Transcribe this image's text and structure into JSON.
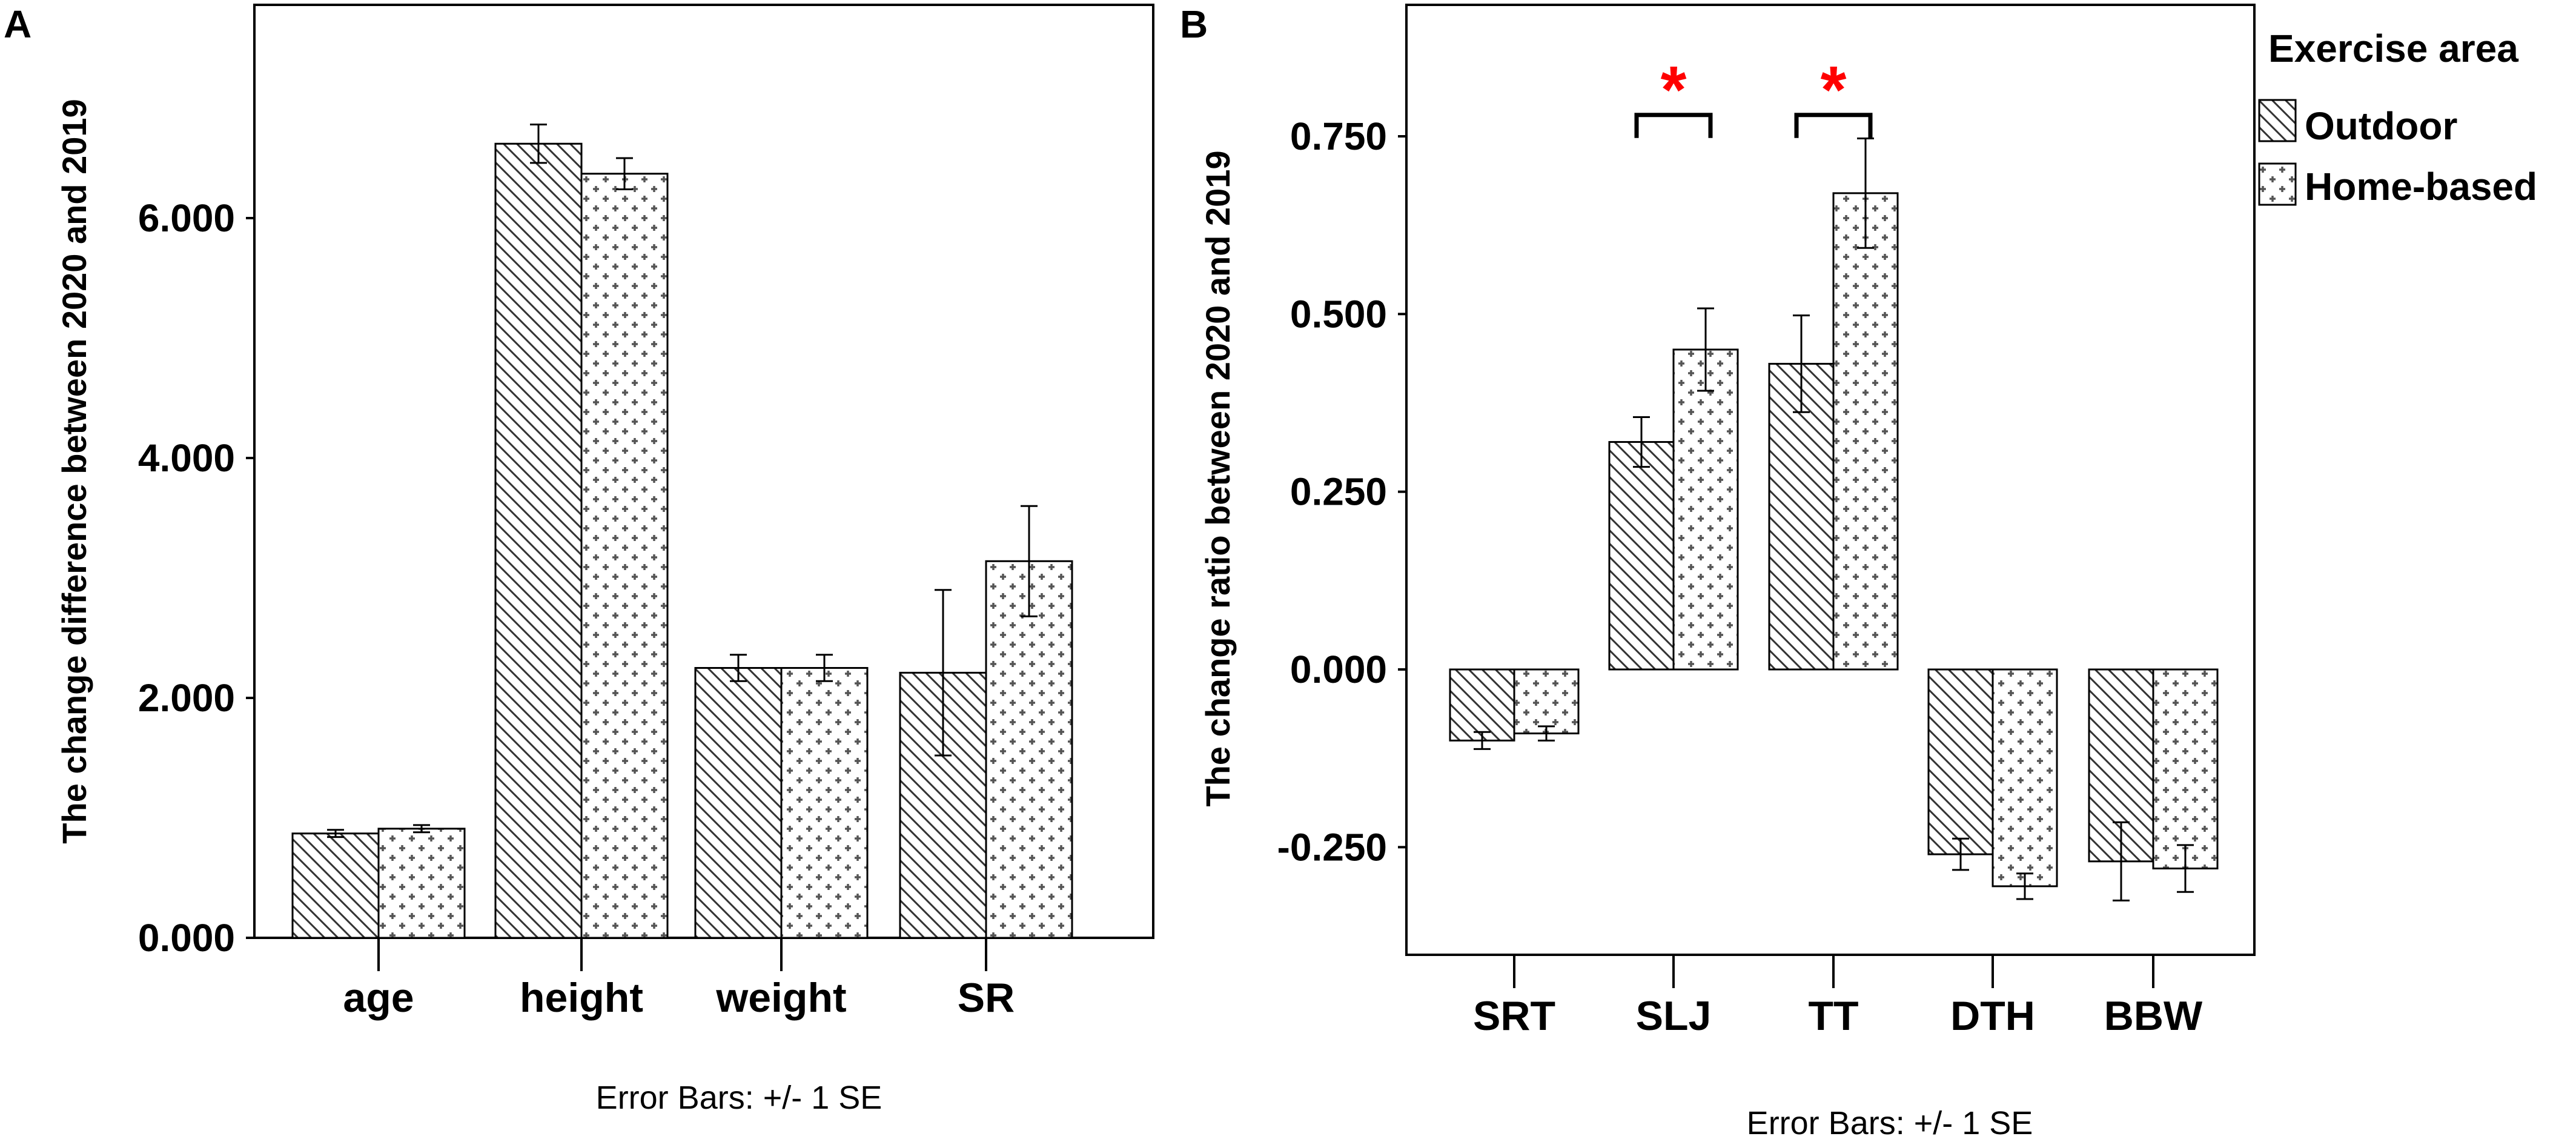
{
  "legend": {
    "title": "Exercise area",
    "items": [
      {
        "label": "Outdoor",
        "pattern": "diagonal-hatch"
      },
      {
        "label": "Home-based",
        "pattern": "plus-dots"
      }
    ]
  },
  "colors": {
    "bar_fill": "#ffffff",
    "bar_stroke": "#000000",
    "pattern_ink": "#333333",
    "significance": "#ff0000"
  },
  "chart_data": [
    {
      "panel": "A",
      "type": "bar",
      "categories": [
        "age",
        "height",
        "weight",
        "SR"
      ],
      "series": [
        {
          "name": "Outdoor",
          "values": [
            0.87,
            6.62,
            2.25,
            2.21
          ],
          "se": [
            0.03,
            0.16,
            0.11,
            0.69
          ]
        },
        {
          "name": "Home-based",
          "values": [
            0.91,
            6.37,
            2.25,
            3.14
          ],
          "se": [
            0.03,
            0.13,
            0.11,
            0.46
          ]
        }
      ],
      "ylabel": "The change difference between 2020 and 2019",
      "ylim": [
        0,
        7.8
      ],
      "yticks": [
        0,
        2,
        4,
        6
      ],
      "ytick_labels": [
        "0.000",
        "2.000",
        "4.000",
        "6.000"
      ],
      "footnote": "Error Bars: +/- 1 SE",
      "significance": []
    },
    {
      "panel": "B",
      "type": "bar",
      "categories": [
        "SRT",
        "SLJ",
        "TT",
        "DTH",
        "BBW"
      ],
      "series": [
        {
          "name": "Outdoor",
          "values": [
            -0.1,
            0.32,
            0.43,
            -0.26,
            -0.27
          ],
          "se": [
            0.012,
            0.035,
            0.068,
            0.022,
            0.055
          ]
        },
        {
          "name": "Home-based",
          "values": [
            -0.09,
            0.45,
            0.67,
            -0.305,
            -0.28
          ],
          "se": [
            0.01,
            0.058,
            0.077,
            0.018,
            0.033
          ]
        }
      ],
      "ylabel": "The change ratio between 2020 and 2019",
      "ylim": [
        -0.4,
        0.93
      ],
      "yticks": [
        -0.25,
        0,
        0.25,
        0.5,
        0.75
      ],
      "ytick_labels": [
        "-0.250",
        "0.000",
        "0.250",
        "0.500",
        "0.750"
      ],
      "footnote": "Error Bars: +/- 1 SE",
      "significance": [
        {
          "category": "SLJ",
          "mark": "*",
          "y": 0.78
        },
        {
          "category": "TT",
          "mark": "*",
          "y": 0.78
        }
      ]
    }
  ]
}
